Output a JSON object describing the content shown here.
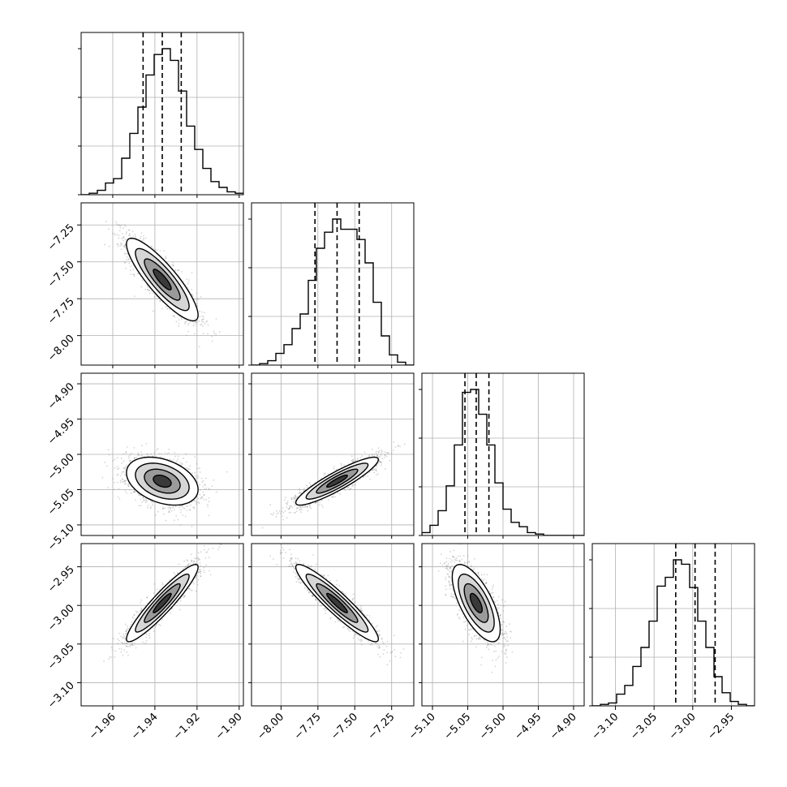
{
  "figure": {
    "kind": "corner plot"
  },
  "chart_data": {
    "type": "corner",
    "grid": true,
    "colors": {
      "frame": "#000000",
      "grid": "#b0b0b0",
      "points": "#888888",
      "hist_line": "#000000"
    },
    "parameters": [
      {
        "label": "",
        "range": [
          -1.975,
          -1.898
        ],
        "ticks": [
          -1.96,
          -1.94,
          -1.92,
          -1.9
        ],
        "tick_labels": [
          "−1.96",
          "−1.94",
          "−1.92",
          "−1.90"
        ],
        "quantiles": [
          -1.9456,
          -1.9365,
          -1.9275
        ]
      },
      {
        "label": "",
        "range": [
          -8.2,
          -7.1
        ],
        "ticks": [
          -8.0,
          -7.75,
          -7.5,
          -7.25
        ],
        "tick_labels": [
          "−8.00",
          "−7.75",
          "−7.50",
          "−7.25"
        ],
        "quantiles": [
          -7.77,
          -7.62,
          -7.47
        ]
      },
      {
        "label": "",
        "range": [
          -5.115,
          -4.885
        ],
        "ticks": [
          -5.1,
          -5.05,
          -5.0,
          -4.95,
          -4.9
        ],
        "tick_labels": [
          "−5.10",
          "−5.05",
          "−5.00",
          "−4.95",
          "−4.90"
        ],
        "quantiles": [
          -5.054,
          -5.038,
          -5.02
        ]
      },
      {
        "label": "",
        "range": [
          -3.13,
          -2.92
        ],
        "ticks": [
          -3.1,
          -3.05,
          -3.0,
          -2.95
        ],
        "tick_labels": [
          "−3.10",
          "−3.05",
          "−3.00",
          "−2.95"
        ],
        "quantiles": [
          -3.022,
          -2.997,
          -2.971
        ]
      }
    ],
    "histograms": [
      [
        0.0,
        0.01,
        0.03,
        0.08,
        0.11,
        0.25,
        0.42,
        0.6,
        0.82,
        0.96,
        1.0,
        0.92,
        0.71,
        0.47,
        0.31,
        0.18,
        0.09,
        0.05,
        0.02,
        0.01
      ],
      [
        0.0,
        0.01,
        0.03,
        0.08,
        0.14,
        0.25,
        0.35,
        0.58,
        0.8,
        0.91,
        1.0,
        0.93,
        0.93,
        0.86,
        0.7,
        0.43,
        0.2,
        0.07,
        0.02,
        0.0
      ],
      [
        0.02,
        0.07,
        0.17,
        0.34,
        0.62,
        0.98,
        1.0,
        0.83,
        0.62,
        0.36,
        0.18,
        0.09,
        0.06,
        0.02,
        0.01,
        0.0,
        0.0,
        0.0,
        0.0,
        0.0
      ],
      [
        0.0,
        0.01,
        0.02,
        0.08,
        0.14,
        0.27,
        0.4,
        0.58,
        0.82,
        0.88,
        1.0,
        0.97,
        0.81,
        0.58,
        0.4,
        0.2,
        0.09,
        0.03,
        0.01,
        0.0
      ]
    ],
    "pairs": [
      {
        "x": 0,
        "y": 1,
        "center": [
          -1.9365,
          -7.62
        ],
        "sigma": [
          0.0085,
          0.14
        ],
        "rho": -0.86
      },
      {
        "x": 0,
        "y": 2,
        "center": [
          -1.9365,
          -5.038
        ],
        "sigma": [
          0.0085,
          0.017
        ],
        "rho": -0.35
      },
      {
        "x": 1,
        "y": 2,
        "center": [
          -7.62,
          -5.038
        ],
        "sigma": [
          0.14,
          0.017
        ],
        "rho": 0.9
      },
      {
        "x": 0,
        "y": 3,
        "center": [
          -1.9365,
          -2.997
        ],
        "sigma": [
          0.0085,
          0.025
        ],
        "rho": 0.93
      },
      {
        "x": 1,
        "y": 3,
        "center": [
          -7.62,
          -2.997
        ],
        "sigma": [
          0.14,
          0.025
        ],
        "rho": -0.93
      },
      {
        "x": 2,
        "y": 3,
        "center": [
          -5.038,
          -2.997
        ],
        "sigma": [
          0.017,
          0.025
        ],
        "rho": -0.68
      }
    ],
    "contour_levels_sigma": [
      0.5,
      1.0,
      1.5,
      2.0
    ]
  }
}
